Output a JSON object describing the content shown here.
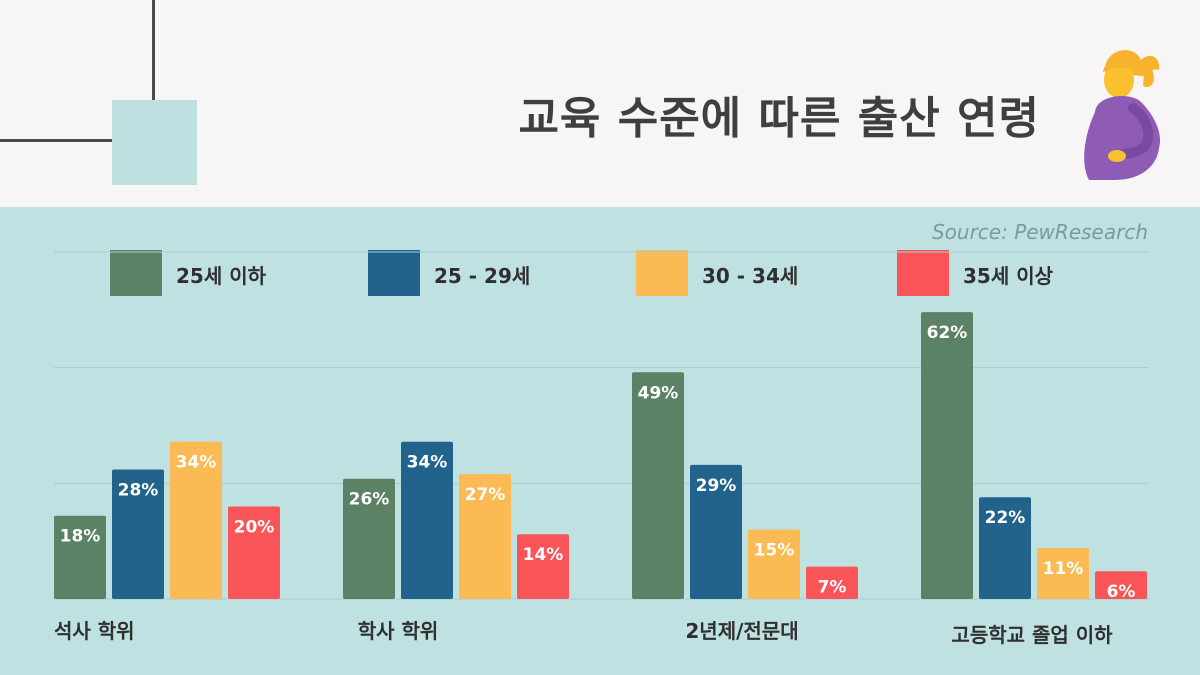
{
  "header": {
    "title": "교육 수준에 따른 출산 연령",
    "icon": "pregnant-woman-icon"
  },
  "source": "Source: PewResearch",
  "legend": [
    {
      "label": "25세 이하",
      "color": "#5b8264"
    },
    {
      "label": "25 - 29세",
      "color": "#22638c"
    },
    {
      "label": "30 - 34세",
      "color": "#fbba53"
    },
    {
      "label": "35세 이상",
      "color": "#f95558"
    }
  ],
  "chart_data": {
    "type": "bar",
    "title": "교육 수준에 따른 출산 연령",
    "xlabel": "",
    "ylabel": "",
    "ylim": [
      0,
      75
    ],
    "grid": true,
    "legend_position": "top",
    "categories": [
      "석사 학위",
      "학사 학위",
      "2년제/전문대",
      "고등학교 졸업 이하"
    ],
    "series": [
      {
        "name": "25세 이하",
        "color": "#5b8264",
        "values": [
          18,
          26,
          49,
          62
        ],
        "labels": [
          "18%",
          "26%",
          "49%",
          "62%"
        ]
      },
      {
        "name": "25 - 29세",
        "color": "#22638c",
        "values": [
          28,
          34,
          29,
          22
        ],
        "labels": [
          "28%",
          "34%",
          "29%",
          "22%"
        ]
      },
      {
        "name": "30 - 34세",
        "color": "#fbba53",
        "values": [
          34,
          27,
          15,
          11
        ],
        "labels": [
          "34%",
          "27%",
          "15%",
          "11%"
        ]
      },
      {
        "name": "35세 이상",
        "color": "#f95558",
        "values": [
          20,
          14,
          7,
          6
        ],
        "labels": [
          "20%",
          "14%",
          "7%",
          "6%"
        ]
      }
    ]
  }
}
